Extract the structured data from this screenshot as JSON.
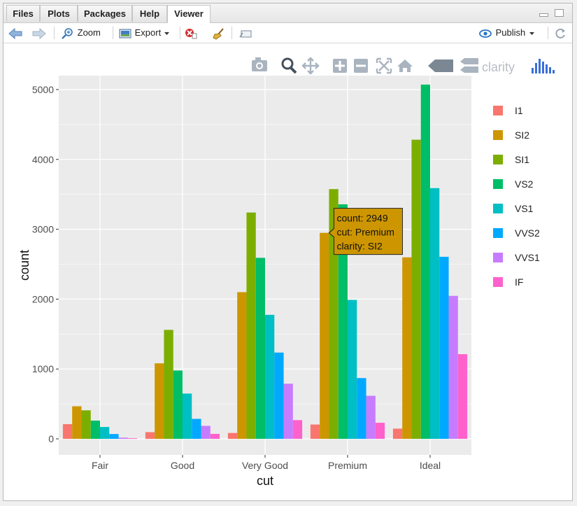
{
  "tabs": [
    {
      "label": "Files"
    },
    {
      "label": "Plots"
    },
    {
      "label": "Packages"
    },
    {
      "label": "Help"
    },
    {
      "label": "Viewer"
    }
  ],
  "toolbar": {
    "zoom_label": "Zoom",
    "export_label": "Export",
    "publish_label": "Publish"
  },
  "modebar": {
    "compare_label": "clarity"
  },
  "colors": {
    "I1": "#F8766D",
    "SI2": "#CD9600",
    "SI1": "#7CAE00",
    "VS2": "#00BE67",
    "VS1": "#00BFC4",
    "VVS2": "#00A9FF",
    "VVS1": "#C77CFF",
    "IF": "#FF61CC",
    "panel": "#EBEBEB",
    "grid": "#FFFFFF"
  },
  "chart_data": {
    "type": "bar",
    "xlabel": "cut",
    "ylabel": "count",
    "categories": [
      "Fair",
      "Good",
      "Very Good",
      "Premium",
      "Ideal"
    ],
    "ylim": [
      -230,
      5200
    ],
    "yticks": [
      0,
      1000,
      2000,
      3000,
      4000,
      5000
    ],
    "legend_position": "right",
    "grid": true,
    "series": [
      {
        "name": "I1",
        "values": [
          210,
          96,
          84,
          205,
          146
        ]
      },
      {
        "name": "SI2",
        "values": [
          466,
          1081,
          2100,
          2949,
          2598
        ]
      },
      {
        "name": "SI1",
        "values": [
          408,
          1560,
          3240,
          3575,
          4282
        ]
      },
      {
        "name": "VS2",
        "values": [
          261,
          978,
          2591,
          3357,
          5071
        ]
      },
      {
        "name": "VS1",
        "values": [
          170,
          648,
          1775,
          1989,
          3589
        ]
      },
      {
        "name": "VVS2",
        "values": [
          69,
          286,
          1235,
          870,
          2606
        ]
      },
      {
        "name": "VVS1",
        "values": [
          17,
          186,
          789,
          616,
          2047
        ]
      },
      {
        "name": "IF",
        "values": [
          9,
          71,
          268,
          230,
          1212
        ]
      }
    ],
    "tooltip": {
      "line1": "count: 2949",
      "line2": "cut: Premium",
      "line3": "clarity: SI2"
    }
  }
}
